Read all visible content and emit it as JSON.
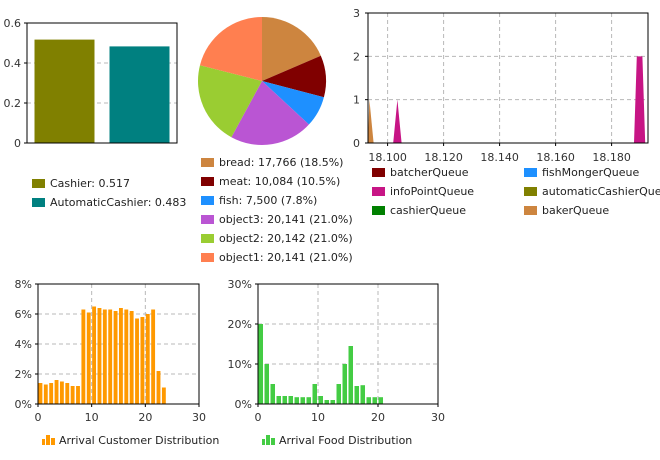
{
  "chart_data": [
    {
      "id": "cashier",
      "type": "bar",
      "categories": [
        "Cashier",
        "AutomaticCashier"
      ],
      "values": [
        0.517,
        0.483
      ],
      "colors": [
        "#808000",
        "#008080"
      ],
      "ylim": [
        0,
        0.6
      ],
      "yticks": [
        "0",
        "0.2",
        "0.4",
        "0.6"
      ],
      "legend": [
        "Cashier: 0.517",
        "AutomaticCashier: 0.483"
      ],
      "grid": true
    },
    {
      "id": "food-pie",
      "type": "pie",
      "labels": [
        "bread",
        "meat",
        "fish",
        "object3",
        "object2",
        "object1"
      ],
      "values": [
        17766,
        10084,
        7500,
        20141,
        20142,
        20141
      ],
      "colors": [
        "#cd853f",
        "#800000",
        "#1e90ff",
        "#ba55d3",
        "#9acd32",
        "#ff7f50"
      ],
      "legend": [
        "bread: 17,766 (18.5%)",
        "meat: 10,084 (10.5%)",
        "fish: 7,500 (7.8%)",
        "object3: 20,141 (21.0%)",
        "object2: 20,142 (21.0%)",
        "object1: 20,141 (21.0%)"
      ]
    },
    {
      "id": "queues",
      "type": "area",
      "xlim": [
        18.093,
        18.193
      ],
      "ylim": [
        0,
        3
      ],
      "xticks": [
        "18.100",
        "18.120",
        "18.140",
        "18.160",
        "18.180"
      ],
      "yticks": [
        "0",
        "1",
        "2",
        "3"
      ],
      "series": [
        {
          "name": "batcherQueue",
          "color": "#800000",
          "x": [],
          "y": []
        },
        {
          "name": "fishMongerQueue",
          "color": "#1e90ff",
          "x": [],
          "y": []
        },
        {
          "name": "infoPointQueue",
          "color": "#c71585",
          "x": [
            18.102,
            18.1035,
            18.105,
            18.188,
            18.189,
            18.191,
            18.192
          ],
          "y": [
            0,
            1,
            0,
            0,
            2,
            2,
            0
          ]
        },
        {
          "name": "automaticCashierQueue",
          "color": "#808000",
          "x": [],
          "y": []
        },
        {
          "name": "cashierQueue",
          "color": "#008000",
          "x": [],
          "y": []
        },
        {
          "name": "bakerQueue",
          "color": "#cd853f",
          "x": [
            18.093,
            18.0935,
            18.095
          ],
          "y": [
            0,
            1,
            0
          ]
        }
      ],
      "grid": true
    },
    {
      "id": "arrival-customer",
      "type": "bar",
      "x": [
        0,
        1,
        2,
        3,
        4,
        5,
        6,
        7,
        8,
        9,
        10,
        11,
        12,
        13,
        14,
        15,
        16,
        17,
        18,
        19,
        20,
        21,
        22,
        23
      ],
      "values": [
        1.4,
        1.3,
        1.4,
        1.6,
        1.5,
        1.4,
        1.2,
        1.2,
        6.3,
        6.1,
        6.5,
        6.4,
        6.3,
        6.3,
        6.2,
        6.4,
        6.3,
        6.2,
        5.7,
        5.8,
        6.0,
        6.3,
        2.2,
        1.1
      ],
      "color": "#ff9900",
      "xlim": [
        0,
        30
      ],
      "ylim": [
        0,
        8
      ],
      "xticks": [
        "0",
        "10",
        "20",
        "30"
      ],
      "yticks": [
        "0%",
        "2%",
        "4%",
        "6%",
        "8%"
      ],
      "legend": "Arrival Customer Distribution",
      "grid": true
    },
    {
      "id": "arrival-food",
      "type": "bar",
      "x": [
        0,
        1,
        2,
        3,
        4,
        5,
        6,
        7,
        8,
        9,
        10,
        11,
        12,
        13,
        14,
        15,
        16,
        17,
        18,
        19,
        20
      ],
      "values": [
        20.0,
        10.0,
        5.0,
        2.0,
        2.0,
        2.0,
        1.7,
        1.7,
        1.7,
        5.0,
        2.0,
        1.0,
        1.0,
        5.0,
        10.0,
        14.5,
        4.5,
        4.7,
        1.7,
        1.7,
        1.7
      ],
      "color": "#44cc44",
      "xlim": [
        0,
        30
      ],
      "ylim": [
        0,
        30
      ],
      "xticks": [
        "0",
        "10",
        "20",
        "30"
      ],
      "yticks": [
        "0%",
        "10%",
        "20%",
        "30%"
      ],
      "legend": "Arrival Food Distribution",
      "grid": true
    }
  ]
}
